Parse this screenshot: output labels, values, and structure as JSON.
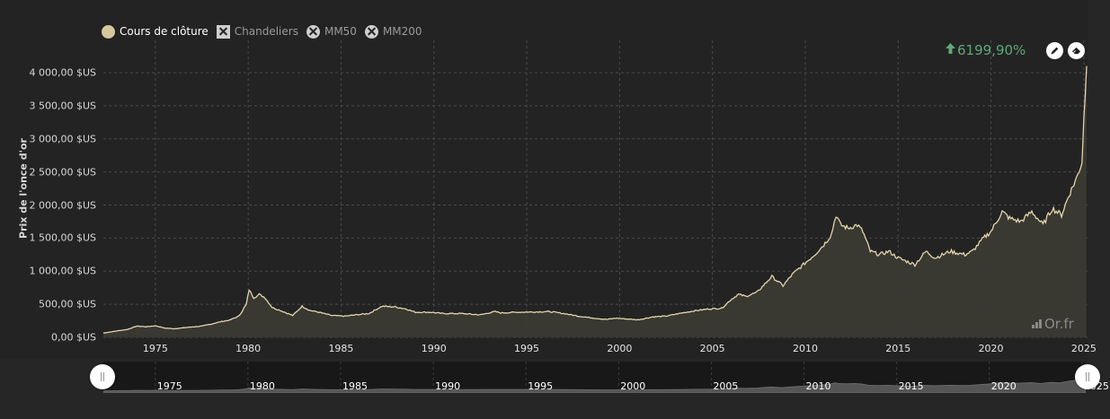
{
  "legend": {
    "items": [
      {
        "label": "Cours de clôture",
        "symbol": "circle-filled",
        "active": true,
        "color": "#d6c79e"
      },
      {
        "label": "Chandeliers",
        "symbol": "square-x",
        "active": false
      },
      {
        "label": "MM50",
        "symbol": "circle-x",
        "active": false
      },
      {
        "label": "MM200",
        "symbol": "circle-x",
        "active": false
      }
    ]
  },
  "performance": {
    "arrow": "up-arrow-icon",
    "value": "6199,90%",
    "color": "#5fa878"
  },
  "toolbar": {
    "draw_icon": "pencil-icon",
    "erase_icon": "eraser-icon"
  },
  "watermark": {
    "text": "Or.fr"
  },
  "colors": {
    "line": "#e3d4ad",
    "area": "#3b3a33",
    "background": "#232323",
    "grid": "#4a4a4a"
  },
  "chart_data": {
    "type": "area",
    "title": "",
    "xlabel": "",
    "ylabel": "Prix de l'once d'or",
    "ylim": [
      0,
      4000
    ],
    "xlim": [
      1972.2,
      2025.2
    ],
    "grid": true,
    "legend_position": "top-left",
    "y_ticks": [
      "0,00 $US",
      "500,00 $US",
      "1 000,00 $US",
      "1 500,00 $US",
      "2 000,00 $US",
      "2 500,00 $US",
      "3 000,00 $US",
      "3 500,00 $US",
      "4 000,00 $US"
    ],
    "x_ticks": [
      "1975",
      "1980",
      "1985",
      "1990",
      "1995",
      "2000",
      "2005",
      "2010",
      "2015",
      "2020",
      "2025"
    ],
    "series": [
      {
        "name": "Cours de clôture",
        "x": [
          1972.2,
          1973.0,
          1973.5,
          1974.0,
          1974.5,
          1975.0,
          1975.5,
          1976.0,
          1976.7,
          1977.5,
          1978.0,
          1978.5,
          1979.0,
          1979.5,
          1979.9,
          1980.05,
          1980.3,
          1980.6,
          1980.9,
          1981.3,
          1981.8,
          1982.4,
          1982.9,
          1983.3,
          1983.8,
          1984.5,
          1985.2,
          1985.8,
          1986.5,
          1987.2,
          1987.9,
          1988.5,
          1989.0,
          1989.8,
          1990.5,
          1991.5,
          1992.5,
          1993.3,
          1993.6,
          1994.5,
          1995.5,
          1996.2,
          1997.0,
          1997.8,
          1998.5,
          1999.3,
          1999.8,
          2000.3,
          2001.0,
          2001.8,
          2002.5,
          2003.2,
          2004.0,
          2004.8,
          2005.5,
          2006.0,
          2006.4,
          2006.8,
          2007.4,
          2007.9,
          2008.2,
          2008.8,
          2009.3,
          2009.9,
          2010.5,
          2011.0,
          2011.4,
          2011.65,
          2011.9,
          2012.3,
          2012.8,
          2013.1,
          2013.5,
          2014.0,
          2014.5,
          2015.0,
          2015.9,
          2016.5,
          2017.0,
          2017.8,
          2018.6,
          2019.0,
          2019.6,
          2020.0,
          2020.6,
          2021.0,
          2021.6,
          2022.2,
          2022.8,
          2023.3,
          2023.8,
          2024.2,
          2024.6,
          2024.9,
          2025.0,
          2025.15
        ],
        "values": [
          65,
          100,
          120,
          170,
          160,
          175,
          140,
          130,
          150,
          170,
          200,
          235,
          260,
          320,
          500,
          720,
          600,
          650,
          600,
          450,
          400,
          330,
          470,
          410,
          380,
          330,
          320,
          340,
          360,
          470,
          460,
          430,
          380,
          380,
          360,
          360,
          340,
          390,
          370,
          380,
          385,
          390,
          360,
          320,
          295,
          270,
          290,
          280,
          265,
          310,
          320,
          360,
          400,
          430,
          440,
          570,
          650,
          620,
          680,
          830,
          920,
          780,
          950,
          1100,
          1250,
          1400,
          1550,
          1850,
          1700,
          1650,
          1700,
          1600,
          1300,
          1250,
          1300,
          1200,
          1100,
          1300,
          1200,
          1300,
          1250,
          1300,
          1500,
          1600,
          1900,
          1800,
          1750,
          1900,
          1700,
          1950,
          1850,
          2150,
          2400,
          2650,
          3300,
          4100
        ]
      }
    ]
  },
  "navigator": {
    "x_ticks": [
      "1975",
      "1980",
      "1985",
      "1990",
      "1995",
      "2000",
      "2005",
      "2010",
      "2015",
      "2020",
      "2025"
    ],
    "left_handle": "range-start-handle",
    "right_handle": "range-end-handle"
  }
}
